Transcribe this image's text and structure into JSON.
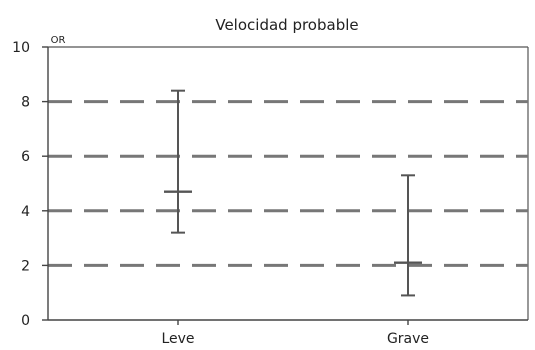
{
  "chart_data": {
    "type": "error-bar",
    "title": "Velocidad probable",
    "ylabel": "OR",
    "xlabel": "",
    "ylim": [
      0,
      10
    ],
    "yticks": [
      0,
      2,
      4,
      6,
      8,
      10
    ],
    "grid_values": [
      2,
      4,
      6,
      8
    ],
    "categories": [
      "Leve",
      "Grave"
    ],
    "points": [
      {
        "category": "Leve",
        "value": 4.7,
        "lower": 3.2,
        "upper": 8.4
      },
      {
        "category": "Grave",
        "value": 2.1,
        "lower": 0.9,
        "upper": 5.3
      }
    ],
    "colors": {
      "grid": "#777777",
      "axis": "#444444",
      "border": "#555555",
      "bar": "#555555",
      "text": "#222222"
    }
  }
}
